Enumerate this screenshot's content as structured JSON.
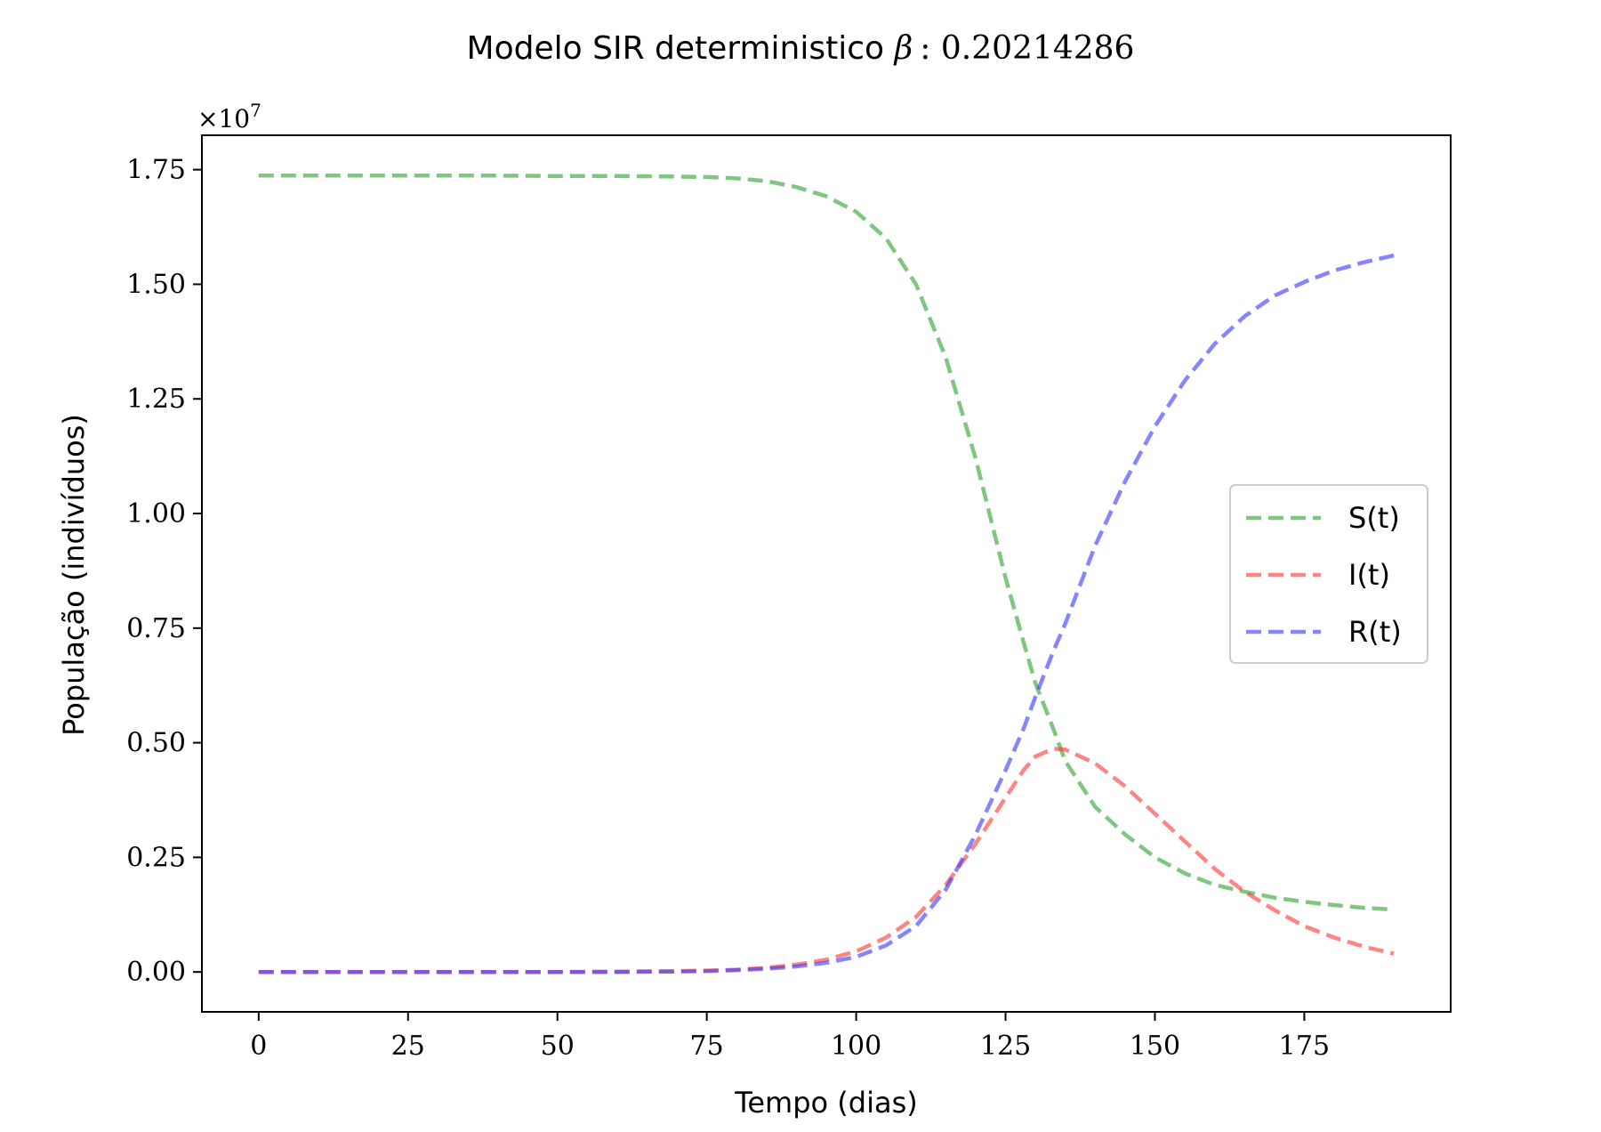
{
  "chart_data": {
    "type": "line",
    "title_text": "Modelo SIR deterministico ",
    "title_symbol": "β",
    "title_value": ": 0.20214286",
    "xlabel": "Tempo (dias)",
    "ylabel": "População (indivíduos)",
    "y_multiplier_base": "×10",
    "y_multiplier_exp": "7",
    "xlim": [
      -9.5,
      199.5
    ],
    "ylim": [
      -0.087,
      1.825
    ],
    "x_ticks": [
      0,
      25,
      50,
      75,
      100,
      125,
      150,
      175
    ],
    "x_tick_labels": [
      "0",
      "25",
      "50",
      "75",
      "100",
      "125",
      "150",
      "175"
    ],
    "y_ticks": [
      0.0,
      0.25,
      0.5,
      0.75,
      1.0,
      1.25,
      1.5,
      1.75
    ],
    "y_tick_labels": [
      "0.00",
      "0.25",
      "0.50",
      "0.75",
      "1.00",
      "1.25",
      "1.50",
      "1.75"
    ],
    "grid": false,
    "legend_position": "center-right",
    "x": [
      0,
      10,
      20,
      30,
      40,
      50,
      60,
      70,
      75,
      80,
      85,
      90,
      95,
      100,
      105,
      110,
      115,
      120,
      125,
      128,
      130,
      133,
      135,
      140,
      145,
      150,
      155,
      160,
      165,
      170,
      175,
      180,
      185,
      190
    ],
    "series": [
      {
        "name": "S(t)",
        "color": "#2ca02c",
        "values": [
          1.737,
          1.737,
          1.737,
          1.737,
          1.737,
          1.736,
          1.736,
          1.735,
          1.734,
          1.731,
          1.725,
          1.712,
          1.692,
          1.658,
          1.6,
          1.5,
          1.34,
          1.12,
          0.86,
          0.72,
          0.63,
          0.53,
          0.46,
          0.36,
          0.3,
          0.25,
          0.215,
          0.19,
          0.175,
          0.162,
          0.153,
          0.146,
          0.14,
          0.136
        ]
      },
      {
        "name": "I(t)",
        "color": "#ff3333",
        "values": [
          0.0,
          0.0,
          0.0,
          0.0,
          0.0,
          0.0,
          0.001,
          0.002,
          0.003,
          0.005,
          0.009,
          0.016,
          0.027,
          0.045,
          0.075,
          0.12,
          0.19,
          0.28,
          0.38,
          0.44,
          0.47,
          0.487,
          0.485,
          0.455,
          0.405,
          0.345,
          0.285,
          0.225,
          0.175,
          0.135,
          0.1,
          0.075,
          0.055,
          0.04
        ]
      },
      {
        "name": "R(t)",
        "color": "#3333ff",
        "values": [
          0.0,
          0.0,
          0.0,
          0.0,
          0.0,
          0.0,
          0.0,
          0.001,
          0.002,
          0.004,
          0.007,
          0.012,
          0.02,
          0.033,
          0.058,
          0.1,
          0.18,
          0.3,
          0.44,
          0.53,
          0.6,
          0.7,
          0.76,
          0.93,
          1.07,
          1.19,
          1.29,
          1.37,
          1.43,
          1.475,
          1.505,
          1.53,
          1.548,
          1.563
        ]
      }
    ]
  }
}
